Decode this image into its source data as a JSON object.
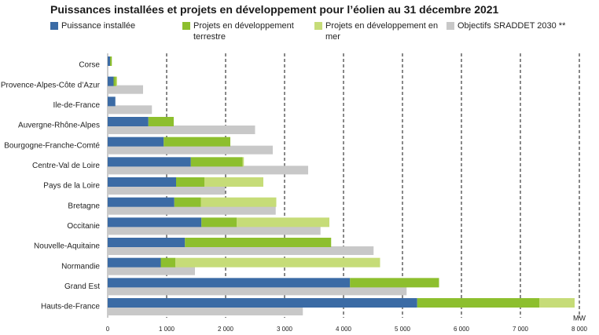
{
  "chart_data": {
    "type": "bar",
    "orientation": "horizontal",
    "title": "Puissances installées et projets en développement pour l’éolien au 31 décembre 2021",
    "categories": [
      "Corse",
      "Provence-Alpes-Côte d’Azur",
      "Ile-de-France",
      "Auvergne-Rhône-Alpes",
      "Bourgogne-Franche-Comté",
      "Centre-Val de Loire",
      "Pays de la Loire",
      "Bretagne",
      "Occitanie",
      "Nouvelle-Aquitaine",
      "Normandie",
      "Grand Est",
      "Hauts-de-France"
    ],
    "series": [
      {
        "name": "Puissance installée",
        "color": "#3b6ba5",
        "values": [
          40,
          100,
          130,
          690,
          950,
          1410,
          1160,
          1130,
          1590,
          1310,
          900,
          4110,
          5250
        ]
      },
      {
        "name": "Projets en développement terrestre",
        "color": "#8dbf2e",
        "values": [
          30,
          40,
          0,
          430,
          1130,
          880,
          480,
          450,
          600,
          2480,
          250,
          1510,
          2070
        ]
      },
      {
        "name": "Projets en développement en mer",
        "color": "#c6dc78",
        "values": [
          0,
          20,
          0,
          0,
          0,
          20,
          1000,
          1280,
          1570,
          0,
          3470,
          0,
          600
        ]
      },
      {
        "name": "Objectifs SRADDET 2030 **",
        "color": "#c8c8c8",
        "overlay": true,
        "values": [
          0,
          600,
          750,
          2500,
          2800,
          3400,
          1990,
          2850,
          3610,
          4510,
          1480,
          5070,
          3310
        ]
      }
    ],
    "xlabel": "MW",
    "xlim": [
      0,
      8000
    ],
    "xticks": [
      0,
      {
        "value": 1000,
        "label": "1 000"
      },
      {
        "value": 2000,
        "label": "2 000"
      },
      {
        "value": 3000,
        "label": "3 000"
      },
      {
        "value": 4000,
        "label": "4 000"
      },
      {
        "value": 5000,
        "label": "5 000"
      },
      {
        "value": 6000,
        "label": "6 000"
      },
      {
        "value": 7000,
        "label": "7 000"
      },
      {
        "value": 8000,
        "label": "8 000"
      }
    ],
    "grid": true
  }
}
